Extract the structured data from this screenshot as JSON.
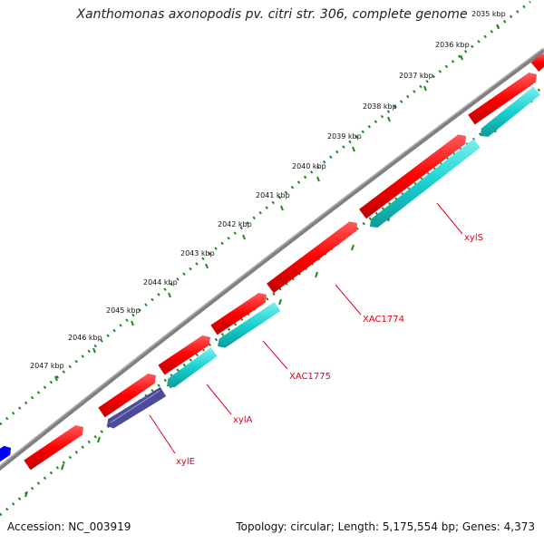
{
  "title": "Xanthomonas axonopodis pv. citri str. 306, complete genome",
  "accession": "Accession: NC_003919",
  "summary": "Topology: circular; Length: 5,175,554 bp; Genes: 4,373",
  "scale_labels": [
    "2035 kbp",
    "2036 kbp",
    "2037 kbp",
    "2038 kbp",
    "2039 kbp",
    "2040 kbp",
    "2041 kbp",
    "2042 kbp",
    "2043 kbp",
    "2044 kbp",
    "2045 kbp",
    "2046 kbp",
    "2047 kbp"
  ],
  "gene_labels": [
    "xylS",
    "XAC1774",
    "XAC1775",
    "xylA",
    "xylE"
  ],
  "colors": {
    "forward_gene": "#ff0000",
    "reverse_gene": "#19d0d0",
    "other_gene": "#0000ff",
    "highlight_gene": "#4b4b9a",
    "backbone": "#808080",
    "tick": "#1a8c1a",
    "label_line": "#e0001a"
  }
}
